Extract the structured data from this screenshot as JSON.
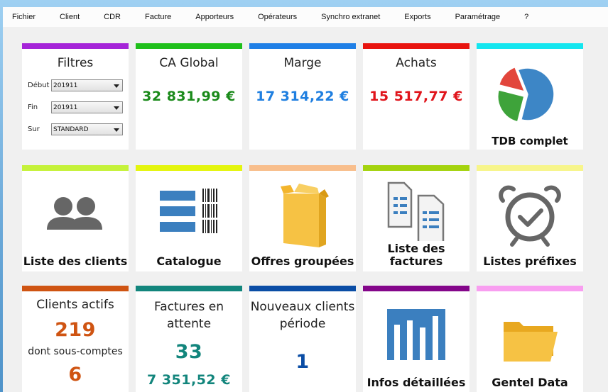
{
  "menu": [
    "Fichier",
    "Client",
    "CDR",
    "Facture",
    "Apporteurs",
    "Opérateurs",
    "Synchro extranet",
    "Exports",
    "Paramétrage",
    "?"
  ],
  "filters": {
    "title": "Filtres",
    "rows": [
      {
        "label": "Début",
        "value": "201911"
      },
      {
        "label": "Fin",
        "value": "201911"
      },
      {
        "label": "Sur",
        "value": "STANDARD"
      }
    ]
  },
  "kpi": {
    "ca": {
      "title": "CA Global",
      "value": "32 831,99 €",
      "color": "#1a8a1a"
    },
    "marge": {
      "title": "Marge",
      "value": "17 314,22 €",
      "color": "#1f7fe0"
    },
    "achats": {
      "title": "Achats",
      "value": "15 517,77 €",
      "color": "#e0141b"
    }
  },
  "tdb": {
    "label": "TDB complet",
    "pie": [
      {
        "value": 60,
        "color": "#3d86c6"
      },
      {
        "value": 25,
        "color": "#3ea33a"
      },
      {
        "value": 15,
        "color": "#e2463c"
      }
    ]
  },
  "row2": {
    "clients": "Liste des clients",
    "catalogue": "Catalogue",
    "offres": "Offres groupées",
    "factures_line1": "Liste des",
    "factures_line2": "factures",
    "prefixes": "Listes préfixes"
  },
  "row3": {
    "actifs": {
      "title": "Clients actifs",
      "value": "219",
      "sub": "dont sous-comptes",
      "sub_value": "6"
    },
    "attente": {
      "title_line1": "Factures en",
      "title_line2": "attente",
      "count": "33",
      "amount": "7 351,52 €"
    },
    "nouveaux": {
      "title_line1": "Nouveaux clients",
      "title_line2": "période",
      "value": "1"
    },
    "infos": "Infos détaillées",
    "gentel": "Gentel Data"
  },
  "colors": {
    "filters": "#a524d8",
    "ca": "#1fbf1a",
    "marge": "#1f7fe6",
    "achats": "#e8140f",
    "tdb": "#14e6ef",
    "clients": "#c5f23a",
    "catalogue": "#e4f50e",
    "offres": "#f8be8c",
    "factures": "#a4d30e",
    "prefixes": "#f7f58a",
    "actifs": "#cf5412",
    "attente": "#12857c",
    "nouveaux": "#0a4da5",
    "infos": "#84068a",
    "gentel": "#f89ef0"
  }
}
